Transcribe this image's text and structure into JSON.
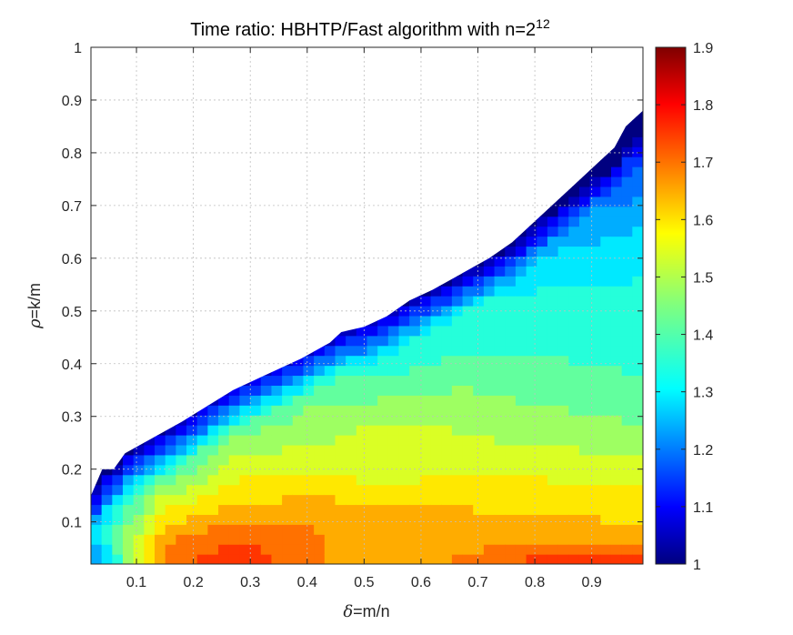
{
  "chart_data": {
    "type": "heatmap",
    "title": "Time ratio: HBHTP/Fast algorithm with n=2",
    "title_superscript": "12",
    "xlabel_symbol": "δ",
    "xlabel_rest": "=m/n",
    "ylabel_symbol": "ρ",
    "ylabel_rest": "=k/m",
    "xlim": [
      0.02,
      0.99
    ],
    "ylim": [
      0.02,
      1.0
    ],
    "x_ticks": [
      0.1,
      0.2,
      0.3,
      0.4,
      0.5,
      0.6,
      0.7,
      0.8,
      0.9
    ],
    "x_tick_labels": [
      "0.1",
      "0.2",
      "0.3",
      "0.4",
      "0.5",
      "0.6",
      "0.7",
      "0.8",
      "0.9"
    ],
    "y_ticks": [
      0.1,
      0.2,
      0.3,
      0.4,
      0.5,
      0.6,
      0.7,
      0.8,
      0.9,
      1.0
    ],
    "y_tick_labels": [
      "0.1",
      "0.2",
      "0.3",
      "0.4",
      "0.5",
      "0.6",
      "0.7",
      "0.8",
      "0.9",
      "1"
    ],
    "grid": true,
    "colormap": "jet",
    "colorbar": {
      "min": 1.0,
      "max": 1.9,
      "ticks": [
        1.0,
        1.1,
        1.2,
        1.3,
        1.4,
        1.5,
        1.6,
        1.7,
        1.8,
        1.9
      ],
      "tick_labels": [
        "1",
        "1.1",
        "1.2",
        "1.3",
        "1.4",
        "1.5",
        "1.6",
        "1.7",
        "1.8",
        "1.9"
      ]
    },
    "boundary": {
      "x": [
        0.02,
        0.04,
        0.06,
        0.08,
        0.13,
        0.18,
        0.21,
        0.27,
        0.33,
        0.39,
        0.44,
        0.46,
        0.5,
        0.54,
        0.58,
        0.62,
        0.67,
        0.72,
        0.76,
        0.8,
        0.83,
        0.87,
        0.91,
        0.94,
        0.96,
        0.99
      ],
      "y": [
        0.15,
        0.2,
        0.2,
        0.23,
        0.26,
        0.29,
        0.31,
        0.35,
        0.38,
        0.41,
        0.44,
        0.46,
        0.47,
        0.49,
        0.52,
        0.54,
        0.57,
        0.6,
        0.63,
        0.67,
        0.7,
        0.74,
        0.78,
        0.81,
        0.85,
        0.88
      ]
    },
    "value_model": {
      "rho_bands": [
        0.02,
        0.07,
        0.13,
        0.2,
        0.27,
        0.34,
        0.42,
        0.5,
        0.58,
        0.66,
        0.74,
        0.82,
        0.9
      ],
      "delta_bands": [
        0.02,
        0.15,
        0.28,
        0.41,
        0.54,
        0.67,
        0.8,
        0.99
      ],
      "values": [
        [
          1.22,
          1.68,
          1.74,
          1.66,
          1.62,
          1.66,
          1.72,
          1.72
        ],
        [
          1.3,
          1.64,
          1.7,
          1.66,
          1.6,
          1.62,
          1.64,
          1.62
        ],
        [
          1.24,
          1.55,
          1.6,
          1.62,
          1.6,
          1.6,
          1.58,
          1.58
        ],
        [
          1.25,
          1.38,
          1.54,
          1.54,
          1.52,
          1.54,
          1.54,
          1.52
        ],
        [
          1.22,
          1.3,
          1.44,
          1.48,
          1.52,
          1.5,
          1.48,
          1.46
        ],
        [
          1.2,
          1.26,
          1.36,
          1.44,
          1.44,
          1.46,
          1.44,
          1.42
        ],
        [
          1.15,
          1.2,
          1.3,
          1.36,
          1.36,
          1.4,
          1.4,
          1.38
        ],
        [
          1.1,
          1.15,
          1.22,
          1.28,
          1.32,
          1.36,
          1.38,
          1.38
        ],
        [
          1.05,
          1.1,
          1.15,
          1.2,
          1.24,
          1.28,
          1.32,
          1.34
        ],
        [
          1.02,
          1.05,
          1.1,
          1.14,
          1.18,
          1.22,
          1.26,
          1.3
        ],
        [
          1.0,
          1.02,
          1.05,
          1.08,
          1.12,
          1.16,
          1.2,
          1.22
        ],
        [
          1.0,
          1.0,
          1.02,
          1.05,
          1.08,
          1.1,
          1.14,
          1.16
        ],
        [
          1.0,
          1.0,
          1.0,
          1.02,
          1.04,
          1.06,
          1.08,
          1.1
        ]
      ]
    }
  }
}
